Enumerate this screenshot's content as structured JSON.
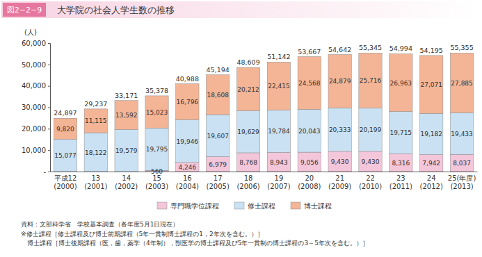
{
  "chart_data": {
    "type": "bar",
    "stacked": true,
    "data_labels": true,
    "grid": false,
    "legend": "bottom",
    "figure_number": "図2−2−9",
    "title": "大学院の社会人学生数の推移",
    "ylabel": "(人)",
    "categories": [
      "平成12\n(2000)",
      "13\n(2001)",
      "14\n(2002)",
      "15\n(2003)",
      "16\n(2004)",
      "17\n(2005)",
      "18\n(2006)",
      "19\n(2007)",
      "20\n(2008)",
      "21\n(2009)",
      "22\n(2010)",
      "23\n(2011)",
      "24\n(2012)",
      "25(年度)\n(2013)"
    ],
    "series": [
      {
        "name": "専門職学位課程",
        "color": "#f4c6da",
        "values": [
          null,
          null,
          null,
          560,
          4246,
          6979,
          8768,
          8943,
          9056,
          9430,
          9430,
          8316,
          7942,
          8037
        ],
        "value_labels": [
          null,
          null,
          null,
          "560",
          "4,246",
          "6,979",
          "8,768",
          "8,943",
          "9,056",
          "9,430",
          "9,430",
          "8,316",
          "7,942",
          "8,037"
        ]
      },
      {
        "name": "修士課程",
        "color": "#c9e1f3",
        "values": [
          15077,
          18122,
          19579,
          19795,
          19946,
          19607,
          19629,
          19784,
          20043,
          20333,
          20199,
          19715,
          19182,
          19433
        ],
        "value_labels": [
          "15,077",
          "18,122",
          "19,579",
          "19,795",
          "19,946",
          "19,607",
          "19,629",
          "19,784",
          "20,043",
          "20,333",
          "20,199",
          "19,715",
          "19,182",
          "19,433"
        ]
      },
      {
        "name": "博士課程",
        "color": "#f3b596",
        "values": [
          9820,
          11115,
          13592,
          15023,
          16796,
          18608,
          20212,
          22415,
          24568,
          24879,
          25716,
          26963,
          27071,
          27885
        ],
        "value_labels": [
          "9,820",
          "11,115",
          "13,592",
          "15,023",
          "16,796",
          "18,608",
          "20,212",
          "22,415",
          "24,568",
          "24,879",
          "25,716",
          "26,963",
          "27,071",
          "27,885"
        ]
      }
    ],
    "totals": [
      24897,
      29237,
      33171,
      35378,
      40988,
      45194,
      48609,
      51142,
      53667,
      54642,
      55345,
      54994,
      54195,
      55355
    ],
    "total_labels": [
      "24,897",
      "29,237",
      "33,171",
      "35,378",
      "40,988",
      "45,194",
      "48,609",
      "51,142",
      "53,667",
      "54,642",
      "55,345",
      "54,994",
      "54,195",
      "55,355"
    ],
    "ylim": [
      0,
      60000
    ],
    "yticks": [
      {
        "value": 0,
        "label": "-"
      },
      {
        "value": 10000,
        "label": "10,000"
      },
      {
        "value": 20000,
        "label": "20,000"
      },
      {
        "value": 30000,
        "label": "30,000"
      },
      {
        "value": 40000,
        "label": "40,000"
      },
      {
        "value": 50000,
        "label": "50,000"
      },
      {
        "value": 60000,
        "label": "60,000"
      }
    ],
    "source": "資料：文部科学省　学校基本調査（各年度5月1日現在）",
    "notes": [
      "※修士課程［修士課程及び博士前期課程（5年一貫制博士課程の1，2年次を含む。）］",
      "　博士課程［博士後期課程（医，歯，薬学（4年制），獣医学の博士課程及び5年一貫制の博士課程の3～5年次を含む。）］"
    ]
  }
}
